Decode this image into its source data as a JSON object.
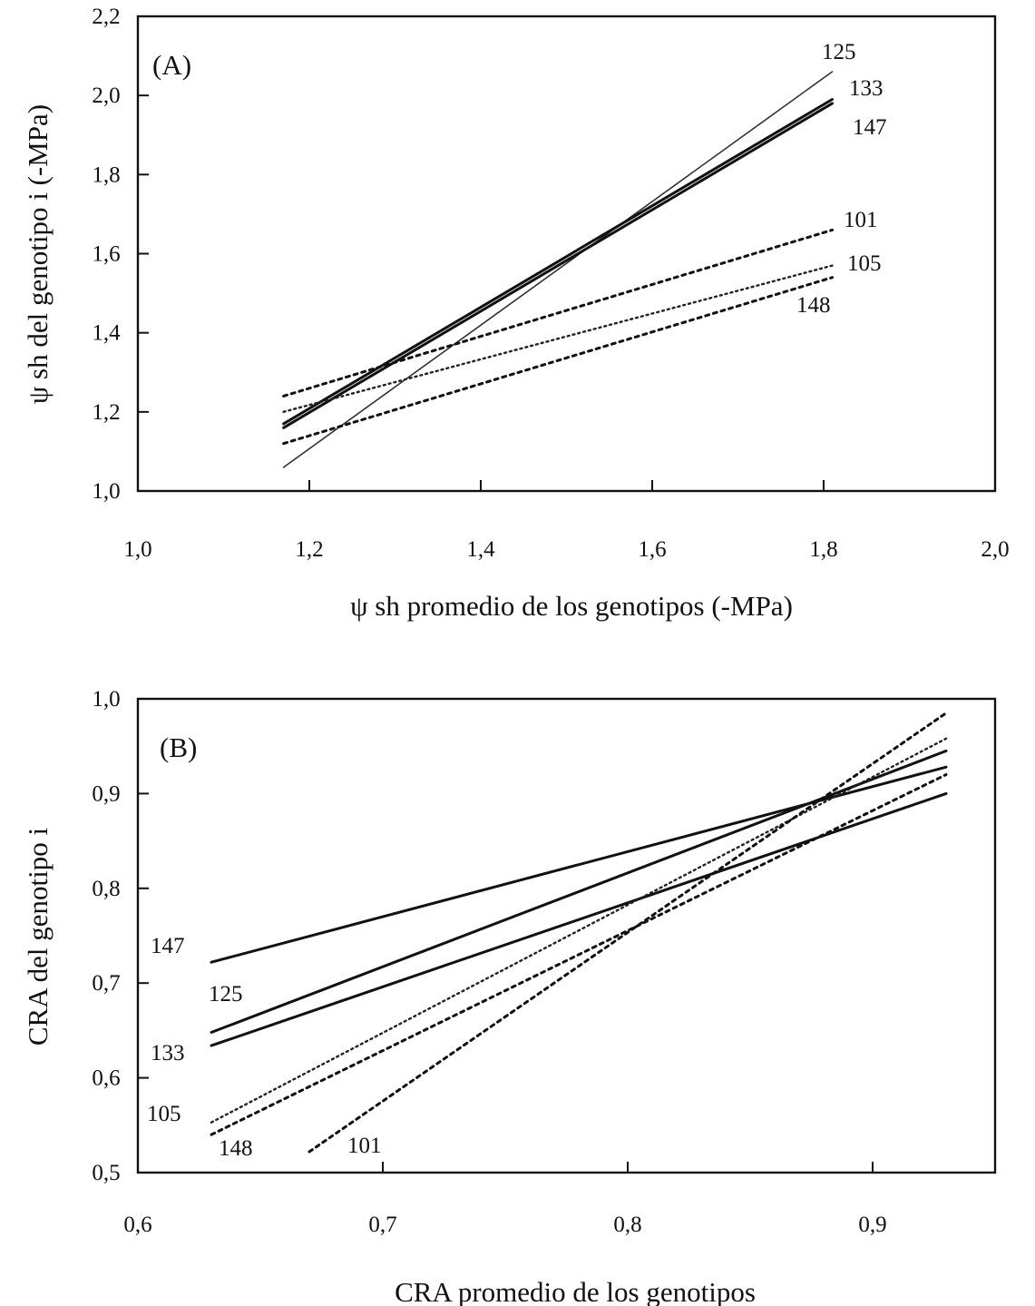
{
  "chart_data": [
    {
      "type": "line",
      "panel_label": "(A)",
      "xlabel": "ψ sh promedio de los genotipos (-MPa)",
      "ylabel": "ψ sh del genotipo i (-MPa)",
      "xlim": [
        1.0,
        2.0
      ],
      "ylim": [
        1.0,
        2.2
      ],
      "x_ticks": [
        1.0,
        1.2,
        1.4,
        1.6,
        1.8,
        2.0
      ],
      "x_tick_labels": [
        "1,0",
        "1,2",
        "1,4",
        "1,6",
        "1,8",
        "2,0"
      ],
      "y_ticks": [
        1.0,
        1.2,
        1.4,
        1.6,
        1.8,
        2.0,
        2.2
      ],
      "y_tick_labels": [
        "1,0",
        "1,2",
        "1,4",
        "1,6",
        "1,8",
        "2,0",
        "2,2"
      ],
      "grid": false,
      "legend": "none",
      "series": [
        {
          "name": "125",
          "style": "thin-solid",
          "x": [
            1.17,
            1.81
          ],
          "y": [
            1.06,
            2.06
          ]
        },
        {
          "name": "133",
          "style": "solid",
          "x": [
            1.17,
            1.81
          ],
          "y": [
            1.17,
            1.99
          ]
        },
        {
          "name": "147",
          "style": "solid",
          "x": [
            1.17,
            1.81
          ],
          "y": [
            1.16,
            1.98
          ]
        },
        {
          "name": "101",
          "style": "dashed",
          "x": [
            1.17,
            1.81
          ],
          "y": [
            1.24,
            1.66
          ]
        },
        {
          "name": "105",
          "style": "dotted",
          "x": [
            1.17,
            1.81
          ],
          "y": [
            1.2,
            1.57
          ]
        },
        {
          "name": "148",
          "style": "dashed",
          "x": [
            1.17,
            1.81
          ],
          "y": [
            1.12,
            1.54
          ]
        }
      ],
      "annotations": [
        {
          "text": "125",
          "series": "125"
        },
        {
          "text": "133",
          "series": "133"
        },
        {
          "text": "147",
          "series": "147"
        },
        {
          "text": "101",
          "series": "101"
        },
        {
          "text": "105",
          "series": "105"
        },
        {
          "text": "148",
          "series": "148"
        }
      ]
    },
    {
      "type": "line",
      "panel_label": "(B)",
      "xlabel": "CRA promedio de los genotipos",
      "ylabel": "CRA del genotipo i",
      "xlim": [
        0.6,
        0.95
      ],
      "ylim": [
        0.5,
        1.0
      ],
      "x_ticks": [
        0.6,
        0.7,
        0.8,
        0.9
      ],
      "x_tick_labels": [
        "0,6",
        "0,7",
        "0,8",
        "0,9"
      ],
      "y_ticks": [
        0.5,
        0.6,
        0.7,
        0.8,
        0.9,
        1.0
      ],
      "y_tick_labels": [
        "0,5",
        "0,6",
        "0,7",
        "0,8",
        "0,9",
        "1,0"
      ],
      "grid": false,
      "legend": "none",
      "series": [
        {
          "name": "147",
          "style": "solid",
          "x": [
            0.63,
            0.93
          ],
          "y": [
            0.722,
            0.928
          ]
        },
        {
          "name": "125",
          "style": "solid",
          "x": [
            0.63,
            0.93
          ],
          "y": [
            0.648,
            0.945
          ]
        },
        {
          "name": "133",
          "style": "solid",
          "x": [
            0.63,
            0.93
          ],
          "y": [
            0.634,
            0.9
          ]
        },
        {
          "name": "105",
          "style": "dotted",
          "x": [
            0.63,
            0.93
          ],
          "y": [
            0.553,
            0.958
          ]
        },
        {
          "name": "148",
          "style": "dashed",
          "x": [
            0.63,
            0.93
          ],
          "y": [
            0.54,
            0.92
          ]
        },
        {
          "name": "101",
          "style": "dashed",
          "x": [
            0.67,
            0.93
          ],
          "y": [
            0.522,
            0.985
          ]
        }
      ],
      "annotations": [
        {
          "text": "147",
          "series": "147"
        },
        {
          "text": "125",
          "series": "125"
        },
        {
          "text": "133",
          "series": "133"
        },
        {
          "text": "105",
          "series": "105"
        },
        {
          "text": "148",
          "series": "148"
        },
        {
          "text": "101",
          "series": "101"
        }
      ]
    }
  ]
}
